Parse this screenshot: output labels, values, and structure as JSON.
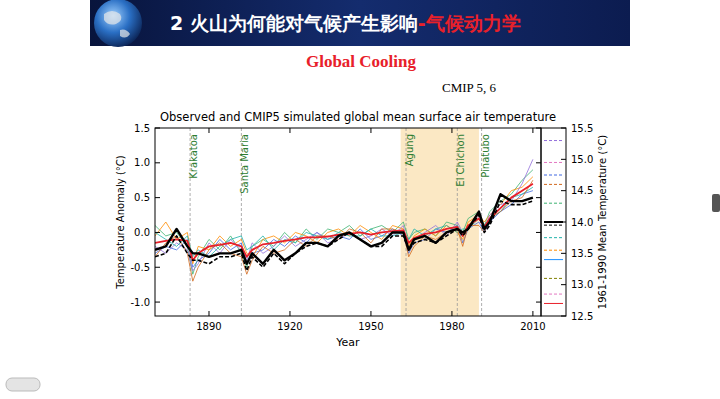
{
  "slide": {
    "title": "2 火山为何能对气候产生影响",
    "title_highlight": "-气候动力学",
    "heading": "Global Cooling",
    "note": "CMIP 5, 6"
  },
  "chart_data": {
    "type": "line",
    "title": "Observed and CMIP5 simulated global mean surface air temperature",
    "x_label": "Year",
    "y_label": "Temperature Anomaly (°C)",
    "y2_label": "1961-1990 Mean Temperature (°C)",
    "grid": false,
    "xlim": [
      1870,
      2013
    ],
    "xticks": [
      1890,
      1920,
      1950,
      1980,
      2010
    ],
    "ylim": [
      -1.2,
      1.5
    ],
    "yticks": [
      {
        "value": -1.0,
        "label": "-1.0"
      },
      {
        "value": -0.5,
        "label": "-0.5"
      },
      {
        "value": 0,
        "label": "0.0"
      },
      {
        "value": 0.5,
        "label": "0.5"
      },
      {
        "value": 1.0,
        "label": "1.0"
      },
      {
        "value": 1.5,
        "label": "1.5"
      }
    ],
    "y2lim": [
      12.5,
      15.5
    ],
    "y2ticks": [
      12.5,
      {
        "value": 13.0,
        "label": "13.0"
      },
      13.5,
      {
        "value": 14.0,
        "label": "14.0"
      },
      14.5,
      {
        "value": 15.0,
        "label": "15.0"
      },
      15.5
    ],
    "shaded_period": [
      1961,
      1990
    ],
    "annotations": [
      {
        "label": "Krakatoa",
        "x": 1883
      },
      {
        "label": "Santa Maria",
        "x": 1902
      },
      {
        "label": "Agung",
        "x": 1963
      },
      {
        "label": "El Chichon",
        "x": 1982
      },
      {
        "label": "Pinatubo",
        "x": 1991
      }
    ],
    "x": [
      1870,
      1874,
      1878,
      1882,
      1884,
      1886,
      1890,
      1894,
      1898,
      1902,
      1904,
      1906,
      1910,
      1914,
      1918,
      1922,
      1926,
      1930,
      1934,
      1938,
      1942,
      1946,
      1950,
      1954,
      1958,
      1962,
      1964,
      1966,
      1970,
      1974,
      1978,
      1982,
      1984,
      1986,
      1990,
      1992,
      1994,
      1998,
      2002,
      2006,
      2010
    ],
    "series": [
      {
        "color": "#3cb371",
        "line_style": "solid",
        "values": [
          0.1,
          -0.05,
          0.0,
          -0.2,
          -0.6,
          -0.35,
          -0.1,
          -0.25,
          -0.05,
          -0.3,
          -0.5,
          -0.2,
          -0.1,
          -0.2,
          0.0,
          -0.15,
          0.05,
          -0.1,
          0.05,
          0.0,
          0.1,
          -0.05,
          0.05,
          0.1,
          0.0,
          0.15,
          -0.1,
          0.0,
          0.05,
          -0.05,
          0.15,
          0.1,
          0.0,
          0.2,
          0.3,
          0.1,
          0.3,
          0.45,
          0.55,
          0.75,
          0.9
        ]
      },
      {
        "color": "#4169e1",
        "line_style": "solid",
        "values": [
          -0.3,
          -0.2,
          -0.25,
          -0.1,
          -0.5,
          -0.4,
          -0.3,
          -0.1,
          -0.25,
          -0.15,
          -0.45,
          -0.3,
          -0.25,
          -0.1,
          -0.2,
          -0.05,
          -0.15,
          0.0,
          -0.1,
          -0.05,
          -0.1,
          0.05,
          -0.1,
          -0.05,
          0.05,
          -0.05,
          -0.3,
          -0.15,
          -0.1,
          0.05,
          0.0,
          0.1,
          -0.15,
          0.05,
          0.15,
          0.0,
          0.15,
          0.3,
          0.4,
          0.55,
          0.6
        ]
      },
      {
        "color": "#ff8c00",
        "line_style": "solid",
        "values": [
          -0.05,
          0.15,
          -0.1,
          0.0,
          -0.45,
          -0.2,
          -0.25,
          -0.05,
          -0.2,
          -0.1,
          -0.3,
          -0.35,
          -0.1,
          -0.05,
          -0.15,
          0.0,
          -0.05,
          -0.15,
          0.0,
          0.05,
          -0.05,
          0.1,
          0.0,
          -0.1,
          0.1,
          0.05,
          -0.2,
          -0.05,
          0.05,
          -0.05,
          0.1,
          0.0,
          -0.1,
          0.15,
          0.25,
          0.15,
          0.25,
          0.4,
          0.6,
          0.65,
          0.8
        ]
      },
      {
        "color": "#9370db",
        "line_style": "solid",
        "values": [
          -0.2,
          -0.3,
          -0.15,
          -0.25,
          -0.55,
          -0.45,
          -0.15,
          -0.3,
          -0.1,
          -0.25,
          -0.4,
          -0.15,
          -0.3,
          -0.2,
          -0.05,
          -0.2,
          -0.1,
          0.0,
          -0.15,
          -0.1,
          0.0,
          -0.1,
          -0.05,
          0.05,
          -0.05,
          0.1,
          -0.25,
          -0.1,
          0.0,
          0.1,
          -0.05,
          0.15,
          0.0,
          0.05,
          0.25,
          0.05,
          0.25,
          0.4,
          0.45,
          0.7,
          1.05
        ]
      },
      {
        "color": "#20b2aa",
        "line_style": "solid",
        "values": [
          0.0,
          -0.1,
          -0.2,
          -0.05,
          -0.35,
          -0.25,
          -0.35,
          -0.2,
          -0.1,
          -0.05,
          -0.25,
          -0.2,
          -0.05,
          -0.25,
          -0.1,
          -0.15,
          0.0,
          -0.05,
          -0.1,
          0.0,
          -0.05,
          -0.05,
          0.05,
          -0.05,
          -0.05,
          0.0,
          -0.1,
          0.05,
          -0.05,
          0.05,
          0.1,
          0.0,
          0.05,
          0.05,
          0.2,
          0.1,
          0.2,
          0.3,
          0.5,
          0.55,
          0.65
        ]
      },
      {
        "color": "#d2691e",
        "line_style": "solid",
        "values": [
          -0.35,
          -0.15,
          -0.05,
          -0.3,
          -0.7,
          -0.5,
          -0.25,
          -0.15,
          -0.3,
          -0.35,
          -0.6,
          -0.4,
          -0.2,
          -0.3,
          -0.25,
          -0.1,
          -0.2,
          -0.05,
          -0.05,
          -0.1,
          0.05,
          0.0,
          -0.15,
          0.05,
          0.05,
          0.0,
          -0.35,
          -0.2,
          -0.05,
          -0.1,
          0.0,
          0.05,
          -0.2,
          0.1,
          0.1,
          0.0,
          0.2,
          0.3,
          0.45,
          0.5,
          0.75
        ]
      },
      {
        "color": "#e8202a",
        "line_style": "solid",
        "values": [
          -0.15,
          -0.12,
          -0.1,
          -0.12,
          -0.4,
          -0.3,
          -0.2,
          -0.18,
          -0.15,
          -0.2,
          -0.35,
          -0.25,
          -0.17,
          -0.15,
          -0.12,
          -0.1,
          -0.07,
          -0.07,
          -0.06,
          -0.03,
          -0.02,
          0.0,
          -0.03,
          0.0,
          0.02,
          0.03,
          -0.15,
          -0.08,
          -0.02,
          0.0,
          0.05,
          0.08,
          -0.05,
          0.1,
          0.2,
          0.08,
          0.2,
          0.35,
          0.5,
          0.6,
          0.7
        ]
      },
      {
        "color": "#000000",
        "line_style": "dashed",
        "values": [
          -0.35,
          -0.3,
          -0.05,
          -0.3,
          -0.4,
          -0.4,
          -0.45,
          -0.35,
          -0.35,
          -0.3,
          -0.55,
          -0.35,
          -0.5,
          -0.3,
          -0.45,
          -0.3,
          -0.2,
          -0.15,
          -0.2,
          -0.1,
          0.0,
          -0.1,
          -0.2,
          -0.2,
          -0.05,
          -0.05,
          -0.25,
          -0.15,
          -0.1,
          -0.15,
          -0.05,
          0.05,
          -0.05,
          0.05,
          0.25,
          0.0,
          0.1,
          0.45,
          0.4,
          0.4,
          0.45
        ]
      },
      {
        "color": "#000000",
        "line_style": "solid",
        "values": [
          -0.25,
          -0.2,
          0.05,
          -0.2,
          -0.3,
          -0.3,
          -0.35,
          -0.3,
          -0.3,
          -0.25,
          -0.45,
          -0.3,
          -0.45,
          -0.25,
          -0.4,
          -0.3,
          -0.15,
          -0.15,
          -0.2,
          -0.05,
          0.0,
          -0.1,
          -0.2,
          -0.15,
          0.0,
          0.0,
          -0.25,
          -0.1,
          -0.05,
          -0.15,
          0.0,
          0.05,
          0.0,
          0.05,
          0.3,
          0.05,
          0.15,
          0.55,
          0.45,
          0.45,
          0.5
        ]
      }
    ],
    "right_marks": [
      {
        "value": 15.3,
        "color": "#9370db",
        "line_style": "dashed"
      },
      {
        "value": 14.95,
        "color": "#e377c2",
        "line_style": "dashed"
      },
      {
        "value": 14.75,
        "color": "#4169e1",
        "line_style": "dashed"
      },
      {
        "value": 14.6,
        "color": "#d2691e",
        "line_style": "dashed"
      },
      {
        "value": 14.3,
        "color": "#3cb371",
        "line_style": "dashed"
      },
      {
        "value": 14.0,
        "color": "#000000",
        "line_style": "solid"
      },
      {
        "value": 13.95,
        "color": "#000000",
        "line_style": "dashed"
      },
      {
        "value": 13.75,
        "color": "#20b2aa",
        "line_style": "dashed"
      },
      {
        "value": 13.55,
        "color": "#ff8c00",
        "line_style": "dashed"
      },
      {
        "value": 13.4,
        "color": "#1e90ff",
        "line_style": "solid"
      },
      {
        "value": 13.1,
        "color": "#808000",
        "line_style": "dashed"
      },
      {
        "value": 12.85,
        "color": "#e377c2",
        "line_style": "dashed"
      },
      {
        "value": 12.7,
        "color": "#e8202a",
        "line_style": "solid"
      }
    ]
  }
}
